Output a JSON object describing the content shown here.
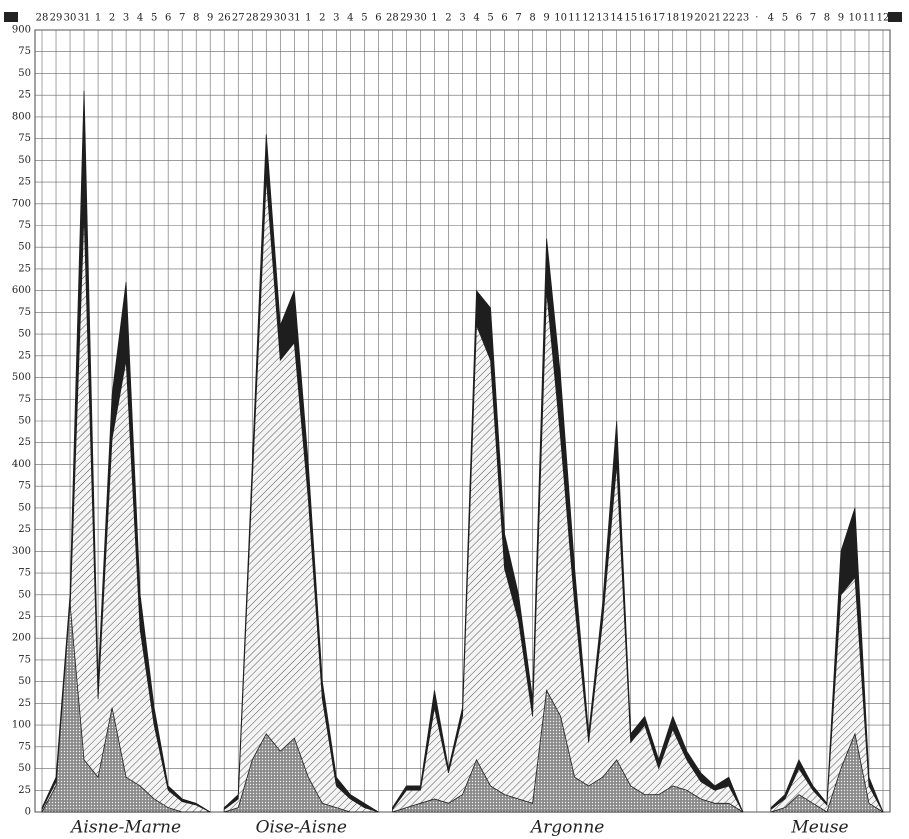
{
  "chart_data": {
    "type": "area",
    "colors": {
      "total": "#1e1e1e",
      "hatched": "#555555",
      "dotted": "#8a8a8a"
    },
    "ylim": [
      0,
      900
    ],
    "yticks": [
      0,
      25,
      50,
      75,
      100,
      {
        "value": 125,
        "label": "25"
      },
      {
        "value": 150,
        "label": "50"
      },
      {
        "value": 175,
        "label": "75"
      },
      200,
      {
        "value": 225,
        "label": "25"
      },
      {
        "value": 250,
        "label": "50"
      },
      {
        "value": 275,
        "label": "75"
      },
      300,
      {
        "value": 325,
        "label": "25"
      },
      {
        "value": 350,
        "label": "50"
      },
      {
        "value": 375,
        "label": "75"
      },
      400,
      {
        "value": 425,
        "label": "25"
      },
      {
        "value": 450,
        "label": "50"
      },
      {
        "value": 475,
        "label": "75"
      },
      500,
      {
        "value": 525,
        "label": "25"
      },
      {
        "value": 550,
        "label": "50"
      },
      {
        "value": 575,
        "label": "75"
      },
      600,
      {
        "value": 625,
        "label": "25"
      },
      {
        "value": 650,
        "label": "50"
      },
      {
        "value": 675,
        "label": "75"
      },
      700,
      {
        "value": 725,
        "label": "25"
      },
      {
        "value": 750,
        "label": "50"
      },
      {
        "value": 775,
        "label": "75"
      },
      800,
      {
        "value": 825,
        "label": "25"
      },
      {
        "value": 850,
        "label": "50"
      },
      {
        "value": 875,
        "label": "75"
      },
      900
    ],
    "grid": true,
    "sections": [
      {
        "label": "Aisne-Marne",
        "categories": [
          "28",
          "29",
          "30",
          "31",
          "1",
          "2",
          "3",
          "4",
          "5",
          "6",
          "7",
          "8",
          "9"
        ],
        "total": [
          5,
          40,
          250,
          830,
          150,
          480,
          610,
          250,
          120,
          30,
          15,
          10,
          0
        ],
        "hatched": [
          3,
          35,
          230,
          690,
          130,
          430,
          520,
          210,
          100,
          25,
          12,
          8,
          0
        ],
        "dotted": [
          0,
          30,
          240,
          60,
          40,
          120,
          40,
          30,
          15,
          5,
          0,
          0,
          0
        ]
      },
      {
        "label": "Oise-Aisne",
        "categories": [
          "26",
          "27",
          "28",
          "29",
          "30",
          "31",
          "1",
          "2",
          "3",
          "4",
          "5",
          "6"
        ],
        "total": [
          5,
          20,
          400,
          780,
          560,
          600,
          400,
          150,
          40,
          20,
          10,
          0
        ],
        "hatched": [
          3,
          15,
          380,
          730,
          520,
          540,
          360,
          130,
          30,
          15,
          5,
          0
        ],
        "dotted": [
          0,
          5,
          60,
          90,
          70,
          85,
          40,
          10,
          5,
          0,
          0,
          0
        ]
      },
      {
        "label": "Argonne",
        "categories": [
          "28",
          "29",
          "30",
          "1",
          "2",
          "3",
          "4",
          "5",
          "6",
          "7",
          "8",
          "9",
          "10",
          "11",
          "12",
          "13",
          "14",
          "15",
          "16",
          "17",
          "18",
          "19",
          "20",
          "21",
          "22",
          "23"
        ],
        "total": [
          5,
          30,
          30,
          140,
          50,
          120,
          600,
          580,
          320,
          250,
          130,
          660,
          500,
          280,
          90,
          240,
          450,
          90,
          110,
          60,
          110,
          70,
          45,
          30,
          40,
          0
        ],
        "hatched": [
          3,
          25,
          25,
          120,
          45,
          110,
          560,
          520,
          280,
          220,
          110,
          600,
          430,
          240,
          80,
          220,
          400,
          80,
          100,
          50,
          95,
          60,
          35,
          25,
          30,
          0
        ],
        "dotted": [
          0,
          5,
          10,
          15,
          10,
          20,
          60,
          30,
          20,
          15,
          10,
          140,
          110,
          40,
          30,
          40,
          60,
          30,
          20,
          20,
          30,
          25,
          15,
          10,
          10,
          0
        ]
      },
      {
        "label": "Meuse",
        "categories": [
          "·",
          "4",
          "5",
          "6",
          "7",
          "8",
          "9",
          "10",
          "11",
          "12"
        ],
        "total": [
          null,
          5,
          20,
          60,
          30,
          10,
          300,
          350,
          40,
          0
        ],
        "hatched": [
          null,
          3,
          15,
          50,
          25,
          8,
          250,
          270,
          30,
          0
        ],
        "dotted": [
          null,
          0,
          5,
          20,
          10,
          0,
          50,
          90,
          10,
          0
        ]
      }
    ]
  }
}
